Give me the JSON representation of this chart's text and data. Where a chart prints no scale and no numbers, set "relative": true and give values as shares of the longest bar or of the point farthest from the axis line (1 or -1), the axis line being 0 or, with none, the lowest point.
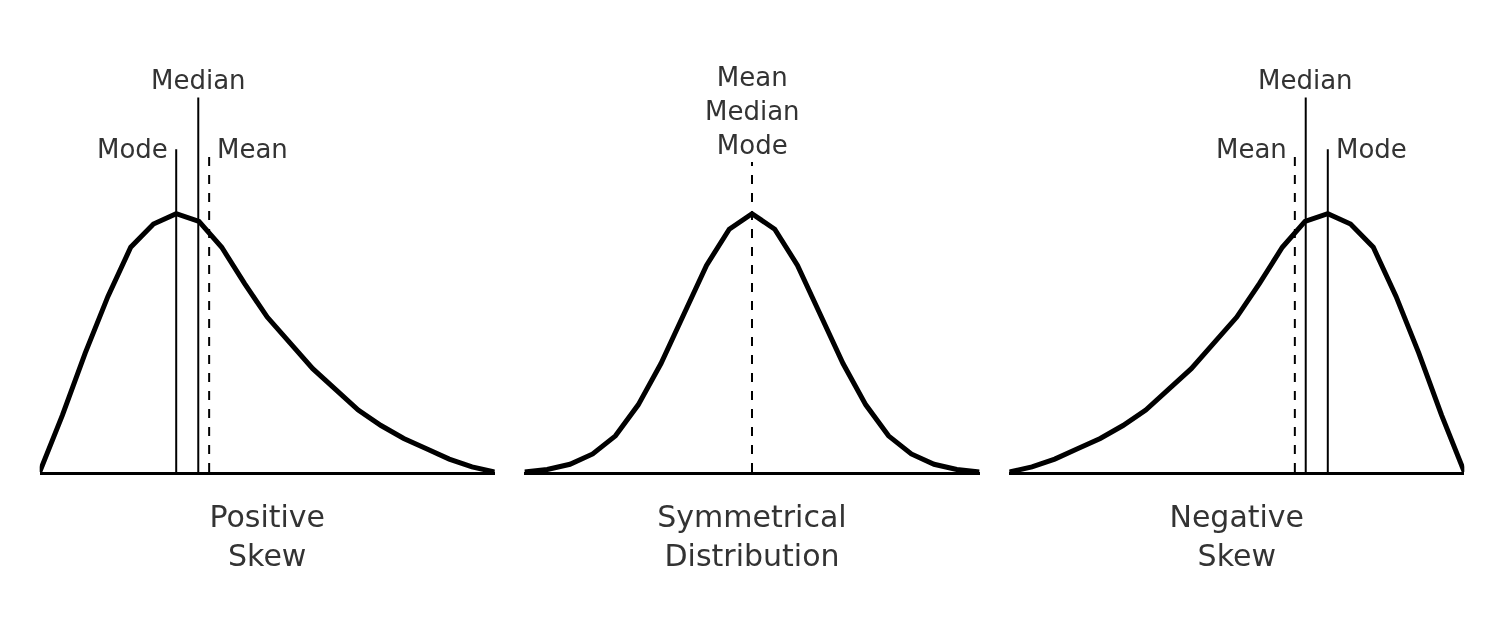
{
  "chart_data": [
    {
      "type": "line",
      "relative": true,
      "xlabel": "Positive\nSkew",
      "line_style": "solid",
      "marker": "none",
      "categories": [
        null,
        null,
        null,
        null,
        null,
        null,
        null,
        null,
        null,
        null,
        null,
        null,
        null,
        null,
        null,
        null,
        null,
        null,
        null,
        null,
        null
      ],
      "series": [
        {
          "color": "#000000",
          "values": [
            0,
            0.22,
            0.46,
            0.68,
            0.87,
            0.96,
            1,
            0.97,
            0.87,
            0.73,
            0.6,
            0.5,
            0.4,
            0.32,
            0.24,
            0.18,
            0.13,
            0.09,
            0.05,
            0.02,
            0
          ]
        }
      ],
      "annotations": [
        "Mode",
        "Median",
        "Mean"
      ]
    },
    {
      "type": "line",
      "relative": true,
      "xlabel": "Symmetrical\nDistribution",
      "line_style": "solid",
      "marker": "none",
      "categories": [
        null,
        null,
        null,
        null,
        null,
        null,
        null,
        null,
        null,
        null,
        null,
        null,
        null,
        null,
        null,
        null,
        null,
        null,
        null,
        null,
        null
      ],
      "series": [
        {
          "color": "#000000",
          "values": [
            0,
            0.01,
            0.03,
            0.07,
            0.14,
            0.26,
            0.42,
            0.61,
            0.8,
            0.94,
            1,
            0.94,
            0.8,
            0.61,
            0.42,
            0.26,
            0.14,
            0.07,
            0.03,
            0.01,
            0
          ]
        }
      ],
      "annotations": [
        "Mean\nMedian\nMode"
      ]
    },
    {
      "type": "line",
      "relative": true,
      "xlabel": "Negative\nSkew",
      "line_style": "solid",
      "marker": "none",
      "categories": [
        null,
        null,
        null,
        null,
        null,
        null,
        null,
        null,
        null,
        null,
        null,
        null,
        null,
        null,
        null,
        null,
        null,
        null,
        null,
        null,
        null
      ],
      "series": [
        {
          "color": "#000000",
          "values": [
            0,
            0.02,
            0.05,
            0.09,
            0.13,
            0.18,
            0.24,
            0.32,
            0.4,
            0.5,
            0.6,
            0.73,
            0.87,
            0.97,
            1,
            0.96,
            0.87,
            0.68,
            0.46,
            0.22,
            0
          ]
        }
      ],
      "annotations": [
        "Mean",
        "Median",
        "Mode"
      ]
    }
  ]
}
